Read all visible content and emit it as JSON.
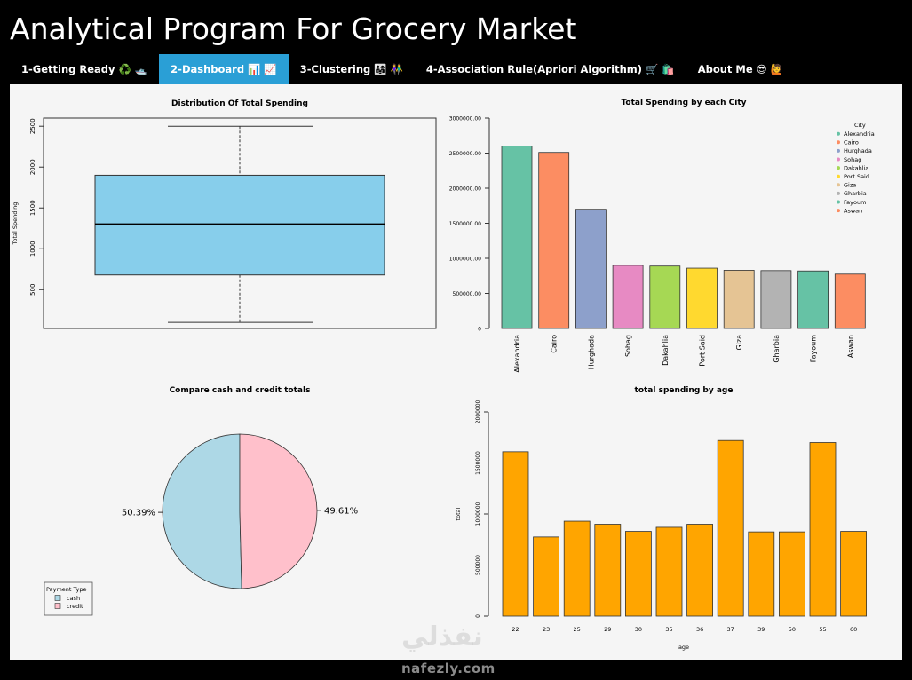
{
  "app": {
    "title": "Analytical Program For Grocery Market"
  },
  "tabs": [
    {
      "label": "1-Getting Ready ♻️ 🛥️",
      "active": false
    },
    {
      "label": "2-Dashboard 📊 📈",
      "active": true
    },
    {
      "label": "3-Clustering 👨‍👩‍👧 👫",
      "active": false
    },
    {
      "label": "4-Association Rule(Apriori Algorithm) 🛒 🛍️",
      "active": false
    },
    {
      "label": "About Me 😎 🙋",
      "active": false
    }
  ],
  "watermark": {
    "arabic": "نفذلي",
    "domain": "nafezly.com"
  },
  "chart_data": [
    {
      "type": "boxplot",
      "title": "Distribution Of Total Spending",
      "ylabel": "Total Spending",
      "xlabel": "",
      "ylim": [
        25,
        2600
      ],
      "yticks": [
        500,
        1000,
        1500,
        2000,
        2500
      ],
      "box": {
        "min": 100,
        "q1": 680,
        "median": 1300,
        "q3": 1900,
        "max": 2500
      },
      "fill": "#87CEEB"
    },
    {
      "type": "bar",
      "title": "Total Spending by each City",
      "xlabel": "",
      "ylabel": "",
      "ylim": [
        0,
        3000000
      ],
      "yticks": [
        0,
        500000,
        1000000,
        1500000,
        2000000,
        2500000,
        3000000
      ],
      "ytick_labels": [
        "0",
        "500000.00",
        "1000000.00",
        "1500000.00",
        "2000000.00",
        "2500000.00",
        "3000000.00"
      ],
      "categories": [
        "Alexandria",
        "Cairo",
        "Hurghada",
        "Sohag",
        "Dakahlia",
        "Port Said",
        "Giza",
        "Gharbia",
        "Fayoum",
        "Aswan"
      ],
      "values": [
        2600000,
        2510000,
        1700000,
        900000,
        890000,
        860000,
        830000,
        825000,
        820000,
        775000
      ],
      "colors": [
        "#66C2A5",
        "#FC8D62",
        "#8DA0CB",
        "#E78AC3",
        "#A6D854",
        "#FFD92F",
        "#E5C494",
        "#B3B3B3",
        "#66C2A5",
        "#FC8D62"
      ],
      "legend": {
        "title": "City",
        "position": "top-right"
      }
    },
    {
      "type": "pie",
      "title": "Compare cash and credit totals",
      "slices": [
        {
          "label": "cash",
          "value": 50.39,
          "text": "50.39%",
          "color": "#ADD8E6"
        },
        {
          "label": "credit",
          "value": 49.61,
          "text": "49.61%",
          "color": "#FFC0CB"
        }
      ],
      "legend": {
        "title": "Payment Type",
        "position": "bottom-left"
      }
    },
    {
      "type": "bar",
      "title": "total spending by age",
      "xlabel": "age",
      "ylabel": "total",
      "ylim": [
        0,
        2000000
      ],
      "yticks": [
        0,
        500000,
        1000000,
        1500000,
        2000000
      ],
      "ytick_labels": [
        "0",
        "500000",
        "1000000",
        "1500000",
        "2000000"
      ],
      "categories": [
        "22",
        "23",
        "25",
        "29",
        "30",
        "35",
        "36",
        "37",
        "39",
        "50",
        "55",
        "60"
      ],
      "values": [
        1610000,
        775000,
        930000,
        900000,
        830000,
        870000,
        900000,
        1720000,
        825000,
        825000,
        1700000,
        830000
      ],
      "color": "#FFA500"
    }
  ]
}
